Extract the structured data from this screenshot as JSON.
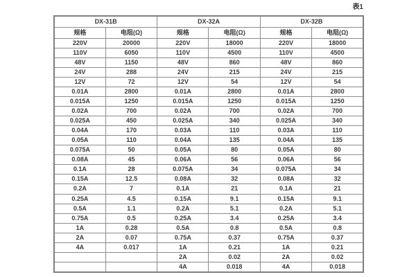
{
  "page": {
    "caption": "表1",
    "background_color": "#ffffff",
    "border_color": "#8c8c8c",
    "text_color": "#3a3a3a"
  },
  "table": {
    "groups": [
      {
        "name": "DX-31B",
        "col_headers": [
          "规格",
          "电阻(Ω)"
        ],
        "rows": [
          [
            "220V",
            "20000"
          ],
          [
            "110V",
            "6050"
          ],
          [
            "48V",
            "1150"
          ],
          [
            "24V",
            "288"
          ],
          [
            "12V",
            "72"
          ],
          [
            "0.01A",
            "2800"
          ],
          [
            "0.015A",
            "1250"
          ],
          [
            "0.02A",
            "700"
          ],
          [
            "0.025A",
            "450"
          ],
          [
            "0.04A",
            "170"
          ],
          [
            "0.05A",
            "110"
          ],
          [
            "0.075A",
            "50"
          ],
          [
            "0.08A",
            "45"
          ],
          [
            "0.1A",
            "28"
          ],
          [
            "0.15A",
            "12.5"
          ],
          [
            "0.2A",
            "7"
          ],
          [
            "0.25A",
            "4.5"
          ],
          [
            "0.5A",
            "1.1"
          ],
          [
            "0.75A",
            "0.5"
          ],
          [
            "1A",
            "0.28"
          ],
          [
            "2A",
            "0.07"
          ],
          [
            "4A",
            "0.017"
          ],
          [
            "",
            ""
          ],
          [
            "",
            ""
          ]
        ]
      },
      {
        "name": "DX-32A",
        "col_headers": [
          "规格",
          "电阻(Ω)"
        ],
        "rows": [
          [
            "220V",
            "18000"
          ],
          [
            "110V",
            "4500"
          ],
          [
            "48V",
            "860"
          ],
          [
            "24V",
            "215"
          ],
          [
            "12V",
            "54"
          ],
          [
            "0.01A",
            "2800"
          ],
          [
            "0.015A",
            "1250"
          ],
          [
            "0.02A",
            "700"
          ],
          [
            "0.025A",
            "340"
          ],
          [
            "0.03A",
            "110"
          ],
          [
            "0.04A",
            "135"
          ],
          [
            "0.05A",
            "80"
          ],
          [
            "0.06A",
            "56"
          ],
          [
            "0.075A",
            "34"
          ],
          [
            "0.08A",
            "32"
          ],
          [
            "0.1A",
            "21"
          ],
          [
            "0.15A",
            "9.1"
          ],
          [
            "0.2A",
            "5.1"
          ],
          [
            "0.25A",
            "3.4"
          ],
          [
            "0.5A",
            "0.8"
          ],
          [
            "0.75A",
            "0.37"
          ],
          [
            "1A",
            "0.21"
          ],
          [
            "2A",
            "0.02"
          ],
          [
            "4A",
            "0.018"
          ]
        ]
      },
      {
        "name": "DX-32B",
        "col_headers": [
          "规格",
          "电阻(Ω)"
        ],
        "rows": [
          [
            "220V",
            "18000"
          ],
          [
            "110V",
            "4500"
          ],
          [
            "48V",
            "860"
          ],
          [
            "24V",
            "215"
          ],
          [
            "12V",
            "54"
          ],
          [
            "0.01A",
            "2800"
          ],
          [
            "0.015A",
            "1250"
          ],
          [
            "0.02A",
            "700"
          ],
          [
            "0.025A",
            "340"
          ],
          [
            "0.03A",
            "110"
          ],
          [
            "0.04A",
            "135"
          ],
          [
            "0.05A",
            "80"
          ],
          [
            "0.06A",
            "56"
          ],
          [
            "0.075A",
            "34"
          ],
          [
            "0.08A",
            "32"
          ],
          [
            "0.1A",
            "21"
          ],
          [
            "0.15A",
            "9.1"
          ],
          [
            "0.2A",
            "5.1"
          ],
          [
            "0.25A",
            "3.4"
          ],
          [
            "0.5A",
            "0.8"
          ],
          [
            "0.75A",
            "0.37"
          ],
          [
            "1A",
            "0.21"
          ],
          [
            "2A",
            "0.02"
          ],
          [
            "4A",
            "0.018"
          ]
        ]
      }
    ]
  }
}
